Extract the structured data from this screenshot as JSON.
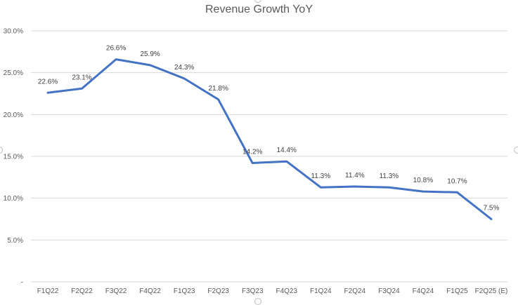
{
  "chart_data": {
    "type": "line",
    "title": "Revenue Growth YoY",
    "xlabel": "",
    "ylabel": "",
    "categories": [
      "F1Q22",
      "F2Q22",
      "F3Q22",
      "F4Q22",
      "F1Q23",
      "F2Q23",
      "F3Q23",
      "F4Q23",
      "F1Q24",
      "F2Q24",
      "F3Q24",
      "F4Q24",
      "F1Q25",
      "F2Q25 (E)"
    ],
    "series": [
      {
        "values": [
          22.6,
          23.1,
          26.6,
          25.9,
          24.3,
          21.8,
          14.2,
          14.4,
          11.3,
          11.4,
          11.3,
          10.8,
          10.7,
          7.5
        ],
        "labels": [
          "22.6%",
          "23.1%",
          "26.6%",
          "25.9%",
          "24.3%",
          "21.8%",
          "14.2%",
          "14.4%",
          "11.3%",
          "11.4%",
          "11.3%",
          "10.8%",
          "10.7%",
          "7.5%"
        ],
        "color": "#4472c4"
      }
    ],
    "ylim": [
      0,
      30
    ],
    "yticks": [
      0,
      5,
      10,
      15,
      20,
      25,
      30
    ],
    "ytick_labels": [
      "-",
      "5.0%",
      "10.0%",
      "15.0%",
      "20.0%",
      "25.0%",
      "30.0%"
    ],
    "grid": true,
    "legend": "none",
    "gridline_color": "#d9d9d9"
  }
}
